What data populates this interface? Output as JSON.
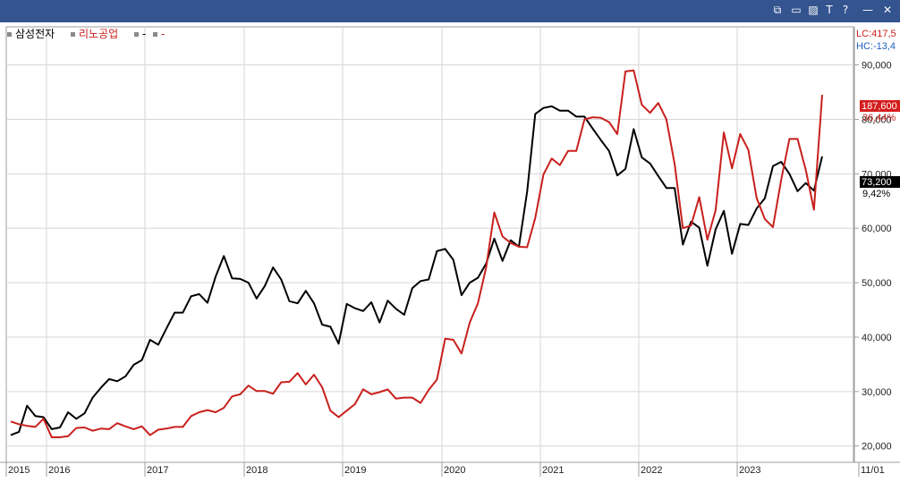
{
  "window": {
    "icons": [
      "window-restore-icon",
      "window-tile-icon",
      "color-fill-icon",
      "text-tool-icon",
      "help-icon",
      "minimize-icon",
      "close-icon"
    ],
    "icon_glyphs": [
      "⧉",
      "▭",
      "▨",
      "T",
      "?",
      "—",
      "✕"
    ]
  },
  "legend": {
    "items": [
      {
        "label": "삼성전자",
        "color": "#000000"
      },
      {
        "label": "리노공업",
        "color": "#c8201c"
      },
      {
        "label": "-",
        "color": "#000000"
      },
      {
        "label": "-",
        "color": "#c8201c"
      }
    ]
  },
  "readouts": {
    "lc": "LC:417,5",
    "hc": "HC:-13,4",
    "lc_color": "#c8201c",
    "hc_color": "#1f5fbf"
  },
  "chart_data": {
    "type": "line",
    "ylim": [
      17000,
      97000
    ],
    "y_ticks": [
      20000,
      30000,
      40000,
      50000,
      60000,
      70000,
      80000,
      90000
    ],
    "y_tick_labels": [
      "20,000",
      "30,000",
      "40,000",
      "50,000",
      "60,000",
      "70,000",
      "80,000",
      "90,000"
    ],
    "x_labels": [
      "2015",
      "2016",
      "2017",
      "2018",
      "2019",
      "2020",
      "2021",
      "2022",
      "2023",
      "11/01"
    ],
    "x_label_months": [
      0,
      4,
      24,
      44,
      64,
      84,
      104,
      124,
      144,
      175
    ],
    "x_start": "2015-08",
    "x_months": 107,
    "series": [
      {
        "name": "삼성전자",
        "color": "#000000",
        "last_label": "73,200",
        "change_label": "9,42%",
        "values": [
          22000,
          22600,
          27400,
          25500,
          25300,
          23100,
          23400,
          26200,
          25000,
          26000,
          28900,
          30700,
          32300,
          31900,
          32800,
          34900,
          35800,
          39500,
          38600,
          41600,
          44500,
          44500,
          47500,
          47900,
          46300,
          51100,
          54900,
          50800,
          50700,
          50000,
          47100,
          49400,
          52800,
          50600,
          46600,
          46200,
          48500,
          46200,
          42300,
          41900,
          38800,
          46100,
          45300,
          44800,
          46400,
          42700,
          46700,
          45200,
          44100,
          49000,
          50300,
          50600,
          55800,
          56200,
          54200,
          47700,
          50000,
          50900,
          53500,
          58100,
          54000,
          57800,
          56600,
          66700,
          81000,
          82100,
          82400,
          81600,
          81600,
          80500,
          80500,
          78300,
          76200,
          74200,
          69700,
          70900,
          78200,
          73000,
          71900,
          69600,
          67400,
          67400,
          57000,
          61200,
          60100,
          53100,
          59800,
          63200,
          55300,
          60800,
          60600,
          63600,
          65500,
          71400,
          72200,
          70000,
          66800,
          68300,
          66900,
          73200
        ]
      },
      {
        "name": "리노공업",
        "color": "#c8201c",
        "last_label": "187,600",
        "change_label": "36,44%",
        "values": [
          24500,
          24000,
          23700,
          23500,
          25000,
          21600,
          21600,
          21800,
          23300,
          23400,
          22800,
          23200,
          23100,
          24200,
          23600,
          23100,
          23600,
          22000,
          23000,
          23200,
          23500,
          23500,
          25500,
          26200,
          26600,
          26200,
          27000,
          29100,
          29500,
          31100,
          30100,
          30100,
          29600,
          31700,
          31800,
          33400,
          31300,
          33100,
          30800,
          26500,
          25300,
          26500,
          27700,
          30400,
          29500,
          29900,
          30400,
          28700,
          28900,
          28900,
          27900,
          30300,
          32200,
          39700,
          39500,
          37000,
          42700,
          46200,
          52800,
          62900,
          58500,
          57300,
          56600,
          56500,
          61900,
          69900,
          72800,
          71600,
          74200,
          74200,
          80000,
          80400,
          80300,
          79500,
          77300,
          88800,
          89000,
          82700,
          81200,
          83000,
          80000,
          71800,
          60000,
          60500,
          65700,
          57900,
          63300,
          77600,
          71000,
          77300,
          74400,
          65600,
          61700,
          60200,
          68900,
          76400,
          76400,
          70700,
          63400,
          84500
        ]
      }
    ]
  }
}
